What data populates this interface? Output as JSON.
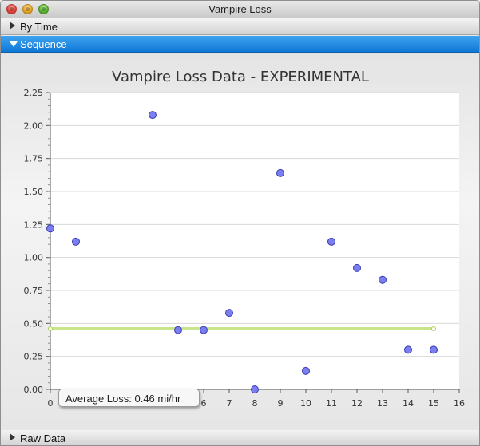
{
  "window": {
    "title": "Vampire Loss"
  },
  "sections": {
    "by_time": "By Time",
    "sequence": "Sequence",
    "raw_data": "Raw Data"
  },
  "tooltip": {
    "text": "Average Loss: 0.46 mi/hr"
  },
  "colors": {
    "point_fill": "#7b7ef0",
    "point_stroke": "#3a3db0",
    "average_line": "#c9e58a",
    "selected_section": "#1f86e0"
  },
  "chart_data": {
    "type": "scatter",
    "title": "Vampire Loss Data - EXPERIMENTAL",
    "xlabel": "",
    "ylabel": "",
    "xlim": [
      0,
      16
    ],
    "ylim": [
      0,
      2.25
    ],
    "x_ticks": [
      0,
      1,
      2,
      3,
      4,
      5,
      6,
      7,
      8,
      9,
      10,
      11,
      12,
      13,
      14,
      15,
      16
    ],
    "y_ticks": [
      "0.00",
      "0.25",
      "0.50",
      "0.75",
      "1.00",
      "1.25",
      "1.50",
      "1.75",
      "2.00",
      "2.25"
    ],
    "grid": "horizontal",
    "series": [
      {
        "x": [
          0,
          1,
          4,
          5,
          6,
          7,
          8,
          9,
          10,
          11,
          12,
          13,
          14,
          15
        ],
        "y": [
          1.22,
          1.12,
          2.08,
          0.45,
          0.45,
          0.58,
          0.0,
          1.64,
          0.14,
          1.12,
          0.92,
          0.83,
          0.3,
          0.3
        ]
      }
    ],
    "average_line": {
      "y": 0.46,
      "x_start": 0,
      "x_end": 15
    }
  }
}
